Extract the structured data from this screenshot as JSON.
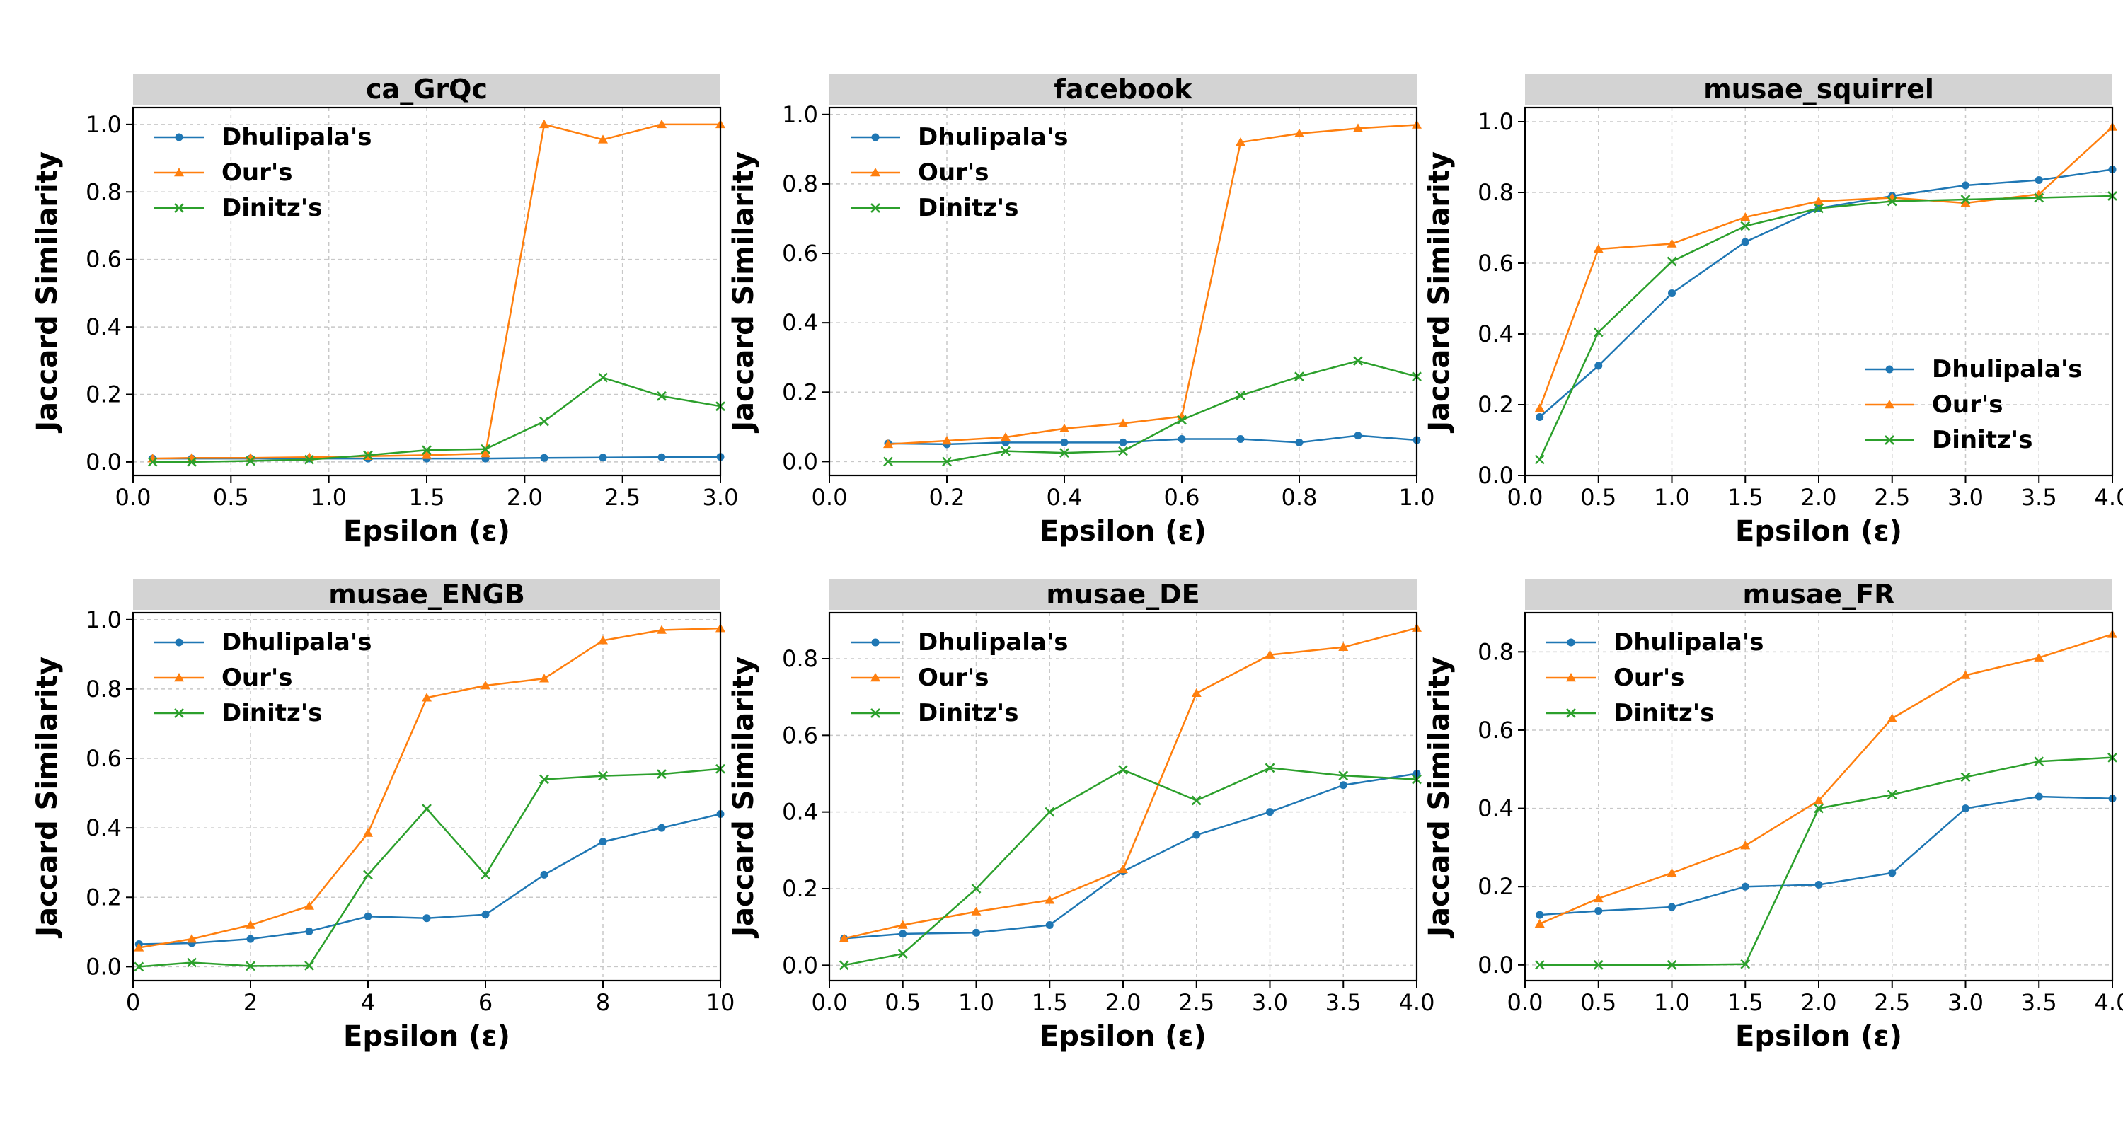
{
  "colors": {
    "Dhulipala's": "#1f77b4",
    "Our's": "#ff7f0e",
    "Dinitz's": "#2ca02c",
    "title_strip": "#d3d3d3"
  },
  "markers": {
    "Dhulipala's": "circle",
    "Our's": "triangle",
    "Dinitz's": "x"
  },
  "chart_data": [
    {
      "type": "line",
      "title": "ca_GrQc",
      "xlabel": "Epsilon (ε)",
      "ylabel": "Jaccard Similarity",
      "x": [
        0.1,
        0.3,
        0.6,
        0.9,
        1.2,
        1.5,
        1.8,
        2.1,
        2.4,
        2.7,
        3.0
      ],
      "xlim": [
        0,
        3.0
      ],
      "ylim": [
        -0.04,
        1.05
      ],
      "xticks": [
        0.0,
        0.5,
        1.0,
        1.5,
        2.0,
        2.5,
        3.0
      ],
      "xtick_labels": [
        "0.0",
        "0.5",
        "1.0",
        "1.5",
        "2.0",
        "2.5",
        "3.0"
      ],
      "yticks": [
        0.0,
        0.2,
        0.4,
        0.6,
        0.8,
        1.0
      ],
      "ytick_labels": [
        "0.0",
        "0.2",
        "0.4",
        "0.6",
        "0.8",
        "1.0"
      ],
      "legend": "upper-left",
      "grid": true,
      "series": [
        {
          "name": "Dhulipala's",
          "values": [
            0.01,
            0.01,
            0.01,
            0.01,
            0.01,
            0.01,
            0.01,
            0.012,
            0.013,
            0.014,
            0.015
          ]
        },
        {
          "name": "Our's",
          "values": [
            0.01,
            0.012,
            0.012,
            0.014,
            0.017,
            0.02,
            0.025,
            1.0,
            0.955,
            1.0,
            1.0
          ]
        },
        {
          "name": "Dinitz's",
          "values": [
            0.0,
            0.0,
            0.003,
            0.007,
            0.02,
            0.035,
            0.038,
            0.12,
            0.25,
            0.195,
            0.165
          ]
        }
      ]
    },
    {
      "type": "line",
      "title": "facebook",
      "xlabel": "Epsilon (ε)",
      "ylabel": "Jaccard Similarity",
      "x": [
        0.1,
        0.2,
        0.3,
        0.4,
        0.5,
        0.6,
        0.7,
        0.8,
        0.9,
        1.0
      ],
      "xlim": [
        0,
        1.0
      ],
      "ylim": [
        -0.04,
        1.02
      ],
      "xticks": [
        0.0,
        0.2,
        0.4,
        0.6,
        0.8,
        1.0
      ],
      "xtick_labels": [
        "0.0",
        "0.2",
        "0.4",
        "0.6",
        "0.8",
        "1.0"
      ],
      "yticks": [
        0.0,
        0.2,
        0.4,
        0.6,
        0.8,
        1.0
      ],
      "ytick_labels": [
        "0.0",
        "0.2",
        "0.4",
        "0.6",
        "0.8",
        "1.0"
      ],
      "legend": "upper-left",
      "grid": true,
      "series": [
        {
          "name": "Dhulipala's",
          "values": [
            0.052,
            0.05,
            0.055,
            0.055,
            0.055,
            0.065,
            0.065,
            0.055,
            0.075,
            0.062
          ]
        },
        {
          "name": "Our's",
          "values": [
            0.05,
            0.06,
            0.07,
            0.095,
            0.11,
            0.13,
            0.92,
            0.945,
            0.96,
            0.97
          ]
        },
        {
          "name": "Dinitz's",
          "values": [
            0.0,
            0.0,
            0.03,
            0.025,
            0.03,
            0.12,
            0.19,
            0.245,
            0.29,
            0.245
          ]
        }
      ]
    },
    {
      "type": "line",
      "title": "musae_squirrel",
      "xlabel": "Epsilon (ε)",
      "ylabel": "Jaccard Similarity",
      "x": [
        0.1,
        0.5,
        1.0,
        1.5,
        2.0,
        2.5,
        3.0,
        3.5,
        4.0
      ],
      "xlim": [
        0,
        4.0
      ],
      "ylim": [
        0.0,
        1.04
      ],
      "xticks": [
        0.0,
        0.5,
        1.0,
        1.5,
        2.0,
        2.5,
        3.0,
        3.5,
        4.0
      ],
      "xtick_labels": [
        "0.0",
        "0.5",
        "1.0",
        "1.5",
        "2.0",
        "2.5",
        "3.0",
        "3.5",
        "4.0"
      ],
      "yticks": [
        0.0,
        0.2,
        0.4,
        0.6,
        0.8,
        1.0
      ],
      "ytick_labels": [
        "0.0",
        "0.2",
        "0.4",
        "0.6",
        "0.8",
        "1.0"
      ],
      "legend": "lower-right",
      "grid": true,
      "series": [
        {
          "name": "Dhulipala's",
          "values": [
            0.165,
            0.31,
            0.515,
            0.66,
            0.755,
            0.79,
            0.82,
            0.835,
            0.865
          ]
        },
        {
          "name": "Our's",
          "values": [
            0.19,
            0.64,
            0.655,
            0.73,
            0.775,
            0.785,
            0.77,
            0.795,
            0.985
          ]
        },
        {
          "name": "Dinitz's",
          "values": [
            0.045,
            0.405,
            0.605,
            0.705,
            0.755,
            0.775,
            0.78,
            0.785,
            0.79
          ]
        }
      ]
    },
    {
      "type": "line",
      "title": "musae_ENGB",
      "xlabel": "Epsilon (ε)",
      "ylabel": "Jaccard Similarity",
      "x": [
        0.1,
        1,
        2,
        3,
        4,
        5,
        6,
        7,
        8,
        9,
        10
      ],
      "xlim": [
        0,
        10
      ],
      "ylim": [
        -0.04,
        1.02
      ],
      "xticks": [
        0,
        2,
        4,
        6,
        8,
        10
      ],
      "xtick_labels": [
        "0",
        "2",
        "4",
        "6",
        "8",
        "10"
      ],
      "yticks": [
        0.0,
        0.2,
        0.4,
        0.6,
        0.8,
        1.0
      ],
      "ytick_labels": [
        "0.0",
        "0.2",
        "0.4",
        "0.6",
        "0.8",
        "1.0"
      ],
      "legend": "upper-left",
      "grid": true,
      "series": [
        {
          "name": "Dhulipala's",
          "values": [
            0.065,
            0.068,
            0.08,
            0.102,
            0.145,
            0.14,
            0.15,
            0.265,
            0.36,
            0.4,
            0.44
          ]
        },
        {
          "name": "Our's",
          "values": [
            0.055,
            0.08,
            0.12,
            0.175,
            0.385,
            0.775,
            0.81,
            0.83,
            0.94,
            0.97,
            0.975
          ]
        },
        {
          "name": "Dinitz's",
          "values": [
            0.0,
            0.012,
            0.002,
            0.003,
            0.265,
            0.455,
            0.265,
            0.54,
            0.55,
            0.555,
            0.57
          ]
        }
      ]
    },
    {
      "type": "line",
      "title": "musae_DE",
      "xlabel": "Epsilon (ε)",
      "ylabel": "Jaccard Similarity",
      "x": [
        0.1,
        0.5,
        1.0,
        1.5,
        2.0,
        2.5,
        3.0,
        3.5,
        4.0
      ],
      "xlim": [
        0,
        4.0
      ],
      "ylim": [
        -0.04,
        0.92
      ],
      "xticks": [
        0.0,
        0.5,
        1.0,
        1.5,
        2.0,
        2.5,
        3.0,
        3.5,
        4.0
      ],
      "xtick_labels": [
        "0.0",
        "0.5",
        "1.0",
        "1.5",
        "2.0",
        "2.5",
        "3.0",
        "3.5",
        "4.0"
      ],
      "yticks": [
        0.0,
        0.2,
        0.4,
        0.6,
        0.8
      ],
      "ytick_labels": [
        "0.0",
        "0.2",
        "0.4",
        "0.6",
        "0.8"
      ],
      "legend": "upper-left",
      "grid": true,
      "series": [
        {
          "name": "Dhulipala's",
          "values": [
            0.07,
            0.082,
            0.085,
            0.105,
            0.245,
            0.34,
            0.4,
            0.47,
            0.5
          ]
        },
        {
          "name": "Our's",
          "values": [
            0.07,
            0.105,
            0.14,
            0.17,
            0.25,
            0.71,
            0.81,
            0.83,
            0.88
          ]
        },
        {
          "name": "Dinitz's",
          "values": [
            0.0,
            0.03,
            0.2,
            0.4,
            0.51,
            0.43,
            0.515,
            0.495,
            0.485
          ]
        }
      ]
    },
    {
      "type": "line",
      "title": "musae_FR",
      "xlabel": "Epsilon (ε)",
      "ylabel": "Jaccard Similarity",
      "x": [
        0.1,
        0.5,
        1.0,
        1.5,
        2.0,
        2.5,
        3.0,
        3.5,
        4.0
      ],
      "xlim": [
        0,
        4.0
      ],
      "ylim": [
        -0.04,
        0.9
      ],
      "xticks": [
        0.0,
        0.5,
        1.0,
        1.5,
        2.0,
        2.5,
        3.0,
        3.5,
        4.0
      ],
      "xtick_labels": [
        "0.0",
        "0.5",
        "1.0",
        "1.5",
        "2.0",
        "2.5",
        "3.0",
        "3.5",
        "4.0"
      ],
      "yticks": [
        0.0,
        0.2,
        0.4,
        0.6,
        0.8
      ],
      "ytick_labels": [
        "0.0",
        "0.2",
        "0.4",
        "0.6",
        "0.8"
      ],
      "legend": "upper-left",
      "grid": true,
      "series": [
        {
          "name": "Dhulipala's",
          "values": [
            0.128,
            0.138,
            0.148,
            0.2,
            0.205,
            0.235,
            0.4,
            0.43,
            0.425
          ]
        },
        {
          "name": "Our's",
          "values": [
            0.105,
            0.17,
            0.235,
            0.305,
            0.42,
            0.63,
            0.74,
            0.785,
            0.845
          ]
        },
        {
          "name": "Dinitz's",
          "values": [
            0.0,
            0.0,
            0.0,
            0.002,
            0.4,
            0.435,
            0.48,
            0.52,
            0.53
          ]
        }
      ]
    }
  ]
}
